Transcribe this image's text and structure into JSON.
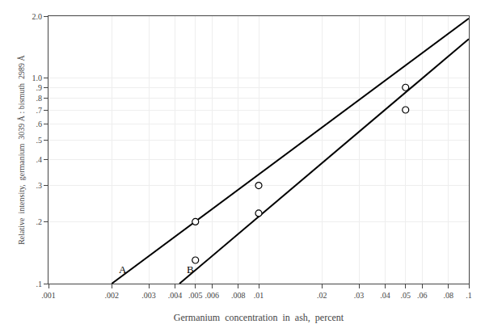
{
  "chart_data": {
    "type": "line",
    "xlabel": "Germanium  concentration  in  ash,  percent",
    "ylabel": "Relative  intensity,  germanium  3039 Å : bismuth  2989 Å",
    "log": true,
    "grid": true,
    "xlim": [
      0.001,
      0.1
    ],
    "ylim": [
      0.1,
      2.0
    ],
    "xticks": [
      {
        "value": 0.001,
        "label": ".001"
      },
      {
        "value": 0.002,
        "label": ".002"
      },
      {
        "value": 0.003,
        "label": ".003"
      },
      {
        "value": 0.004,
        "label": ".004"
      },
      {
        "value": 0.005,
        "label": ".005"
      },
      {
        "value": 0.006,
        "label": ".006"
      },
      {
        "value": 0.008,
        "label": ".008"
      },
      {
        "value": 0.01,
        "label": ".01"
      },
      {
        "value": 0.02,
        "label": ".02"
      },
      {
        "value": 0.03,
        "label": ".03"
      },
      {
        "value": 0.04,
        "label": ".04"
      },
      {
        "value": 0.05,
        "label": ".05"
      },
      {
        "value": 0.06,
        "label": ".06"
      },
      {
        "value": 0.08,
        "label": ".08"
      },
      {
        "value": 0.1,
        "label": ".1"
      }
    ],
    "yticks": [
      {
        "value": 0.1,
        "label": ".1"
      },
      {
        "value": 0.2,
        "label": ".2"
      },
      {
        "value": 0.3,
        "label": ".3"
      },
      {
        "value": 0.4,
        "label": ".4"
      },
      {
        "value": 0.5,
        "label": ".5"
      },
      {
        "value": 0.6,
        "label": ".6"
      },
      {
        "value": 0.7,
        "label": ".7"
      },
      {
        "value": 0.8,
        "label": ".8"
      },
      {
        "value": 0.9,
        "label": ".9"
      },
      {
        "value": 1.0,
        "label": "1.0"
      },
      {
        "value": 2.0,
        "label": "2.0"
      }
    ],
    "series": [
      {
        "type": "line",
        "color": "black",
        "x": [
          0.002,
          0.1
        ],
        "values": [
          0.1,
          1.95
        ]
      },
      {
        "type": "scatter",
        "marker": "circle",
        "color": "black",
        "x": [
          0.005,
          0.01,
          0.05
        ],
        "values": [
          0.2,
          0.3,
          0.9
        ]
      },
      {
        "type": "line",
        "color": "black",
        "x": [
          0.0042,
          0.1
        ],
        "values": [
          0.1,
          1.55
        ]
      },
      {
        "type": "scatter",
        "marker": "circle",
        "color": "black",
        "x": [
          0.005,
          0.01,
          0.05
        ],
        "values": [
          0.13,
          0.22,
          0.7
        ]
      }
    ],
    "annotations": [
      {
        "text": "A",
        "x": 0.00225,
        "y": 0.108
      },
      {
        "text": "B",
        "x": 0.00475,
        "y": 0.108
      }
    ]
  }
}
